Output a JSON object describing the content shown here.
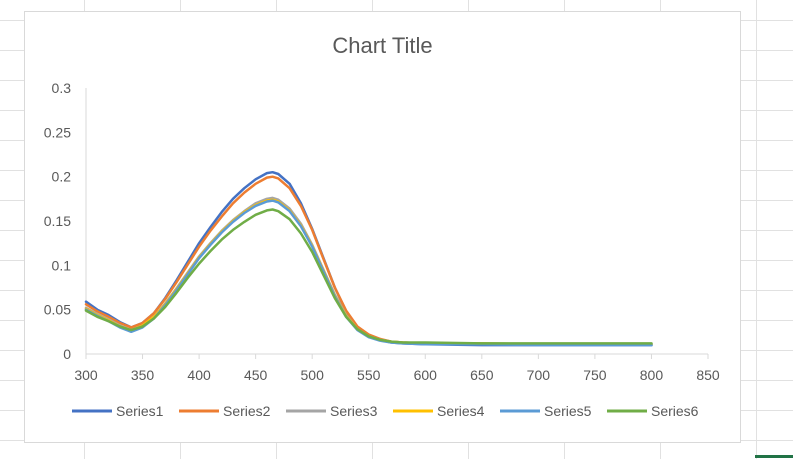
{
  "chart_data": {
    "type": "line",
    "title": "Chart Title",
    "xlabel": "",
    "ylabel": "",
    "xlim": [
      300,
      850
    ],
    "ylim": [
      0,
      0.3
    ],
    "x_ticks": [
      "300",
      "350",
      "400",
      "450",
      "500",
      "550",
      "600",
      "650",
      "700",
      "750",
      "800",
      "850"
    ],
    "y_ticks": [
      "0",
      "0.05",
      "0.1",
      "0.15",
      "0.2",
      "0.25",
      "0.3"
    ],
    "grid": false,
    "legend_position": "bottom",
    "x": [
      300,
      310,
      320,
      330,
      340,
      350,
      360,
      370,
      380,
      390,
      400,
      410,
      420,
      430,
      440,
      450,
      460,
      465,
      470,
      480,
      490,
      500,
      510,
      520,
      530,
      540,
      550,
      560,
      570,
      580,
      600,
      650,
      700,
      750,
      800
    ],
    "series": [
      {
        "name": "Series1",
        "color": "#4472C4",
        "values": [
          0.059,
          0.05,
          0.044,
          0.036,
          0.03,
          0.035,
          0.046,
          0.063,
          0.083,
          0.104,
          0.125,
          0.143,
          0.16,
          0.175,
          0.187,
          0.197,
          0.204,
          0.205,
          0.203,
          0.192,
          0.17,
          0.141,
          0.108,
          0.075,
          0.048,
          0.03,
          0.021,
          0.016,
          0.013,
          0.012,
          0.011,
          0.01,
          0.01,
          0.01,
          0.01
        ]
      },
      {
        "name": "Series2",
        "color": "#ED7D31",
        "values": [
          0.056,
          0.048,
          0.042,
          0.035,
          0.03,
          0.035,
          0.046,
          0.062,
          0.081,
          0.101,
          0.121,
          0.139,
          0.155,
          0.17,
          0.182,
          0.192,
          0.199,
          0.2,
          0.198,
          0.187,
          0.167,
          0.14,
          0.107,
          0.075,
          0.049,
          0.031,
          0.022,
          0.017,
          0.014,
          0.013,
          0.012,
          0.011,
          0.011,
          0.011,
          0.011
        ]
      },
      {
        "name": "Series3",
        "color": "#A5A5A5",
        "values": [
          0.052,
          0.045,
          0.039,
          0.032,
          0.027,
          0.032,
          0.042,
          0.057,
          0.074,
          0.092,
          0.11,
          0.125,
          0.139,
          0.151,
          0.161,
          0.17,
          0.175,
          0.176,
          0.174,
          0.164,
          0.147,
          0.123,
          0.095,
          0.067,
          0.044,
          0.028,
          0.02,
          0.016,
          0.014,
          0.013,
          0.012,
          0.012,
          0.011,
          0.011,
          0.011
        ]
      },
      {
        "name": "Series4",
        "color": "#FFC000",
        "values": [
          0.051,
          0.044,
          0.038,
          0.031,
          0.027,
          0.032,
          0.042,
          0.056,
          0.073,
          0.091,
          0.109,
          0.124,
          0.138,
          0.15,
          0.16,
          0.168,
          0.173,
          0.174,
          0.172,
          0.162,
          0.145,
          0.122,
          0.094,
          0.066,
          0.043,
          0.028,
          0.02,
          0.016,
          0.014,
          0.013,
          0.012,
          0.012,
          0.011,
          0.011,
          0.011
        ]
      },
      {
        "name": "Series5",
        "color": "#5B9BD5",
        "values": [
          0.05,
          0.043,
          0.037,
          0.03,
          0.025,
          0.03,
          0.04,
          0.055,
          0.072,
          0.09,
          0.108,
          0.123,
          0.137,
          0.149,
          0.159,
          0.167,
          0.172,
          0.173,
          0.171,
          0.161,
          0.144,
          0.121,
          0.093,
          0.065,
          0.042,
          0.027,
          0.019,
          0.015,
          0.013,
          0.012,
          0.011,
          0.011,
          0.01,
          0.01,
          0.01
        ]
      },
      {
        "name": "Series6",
        "color": "#70AD47",
        "values": [
          0.049,
          0.042,
          0.037,
          0.031,
          0.027,
          0.031,
          0.04,
          0.053,
          0.069,
          0.086,
          0.102,
          0.116,
          0.129,
          0.14,
          0.149,
          0.157,
          0.162,
          0.163,
          0.161,
          0.152,
          0.136,
          0.115,
          0.089,
          0.063,
          0.042,
          0.028,
          0.02,
          0.016,
          0.014,
          0.013,
          0.013,
          0.012,
          0.012,
          0.012,
          0.012
        ]
      }
    ]
  }
}
